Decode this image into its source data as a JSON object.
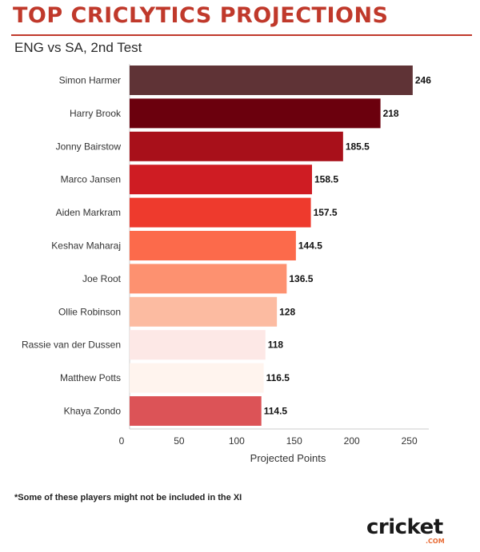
{
  "header": {
    "title": "TOP CRICLYTICS PROJECTIONS",
    "subtitle": "ENG vs SA, 2nd Test"
  },
  "footnote": "*Some of these players might not be included in the XI",
  "logo": {
    "text_main": "cricket",
    "text_sub": ".COM"
  },
  "colors": {
    "title": "#c0392b",
    "rule": "#c0392b",
    "axis": "#cccccc",
    "label": "#333333",
    "value": "#111111",
    "logo_dark": "#1a1a1a",
    "logo_accent": "#e86a33"
  },
  "chart_data": {
    "type": "bar",
    "orientation": "horizontal",
    "title": "",
    "xlabel": "Projected Points",
    "ylabel": "",
    "xlim": [
      0,
      260
    ],
    "xticks": [
      0,
      50,
      100,
      150,
      200,
      250
    ],
    "grid": false,
    "categories": [
      "Simon Harmer",
      "Harry Brook",
      "Jonny Bairstow",
      "Marco Jansen",
      "Aiden Markram",
      "Keshav Maharaj",
      "Joe Root",
      "Ollie Robinson",
      "Rassie van der Dussen",
      "Matthew Potts",
      "Khaya Zondo"
    ],
    "values": [
      246,
      218,
      185.5,
      158.5,
      157.5,
      144.5,
      136.5,
      128,
      118,
      116.5,
      114.5
    ],
    "value_labels": [
      "246",
      "218",
      "185.5",
      "158.5",
      "157.5",
      "144.5",
      "136.5",
      "128",
      "118",
      "116.5",
      "114.5"
    ],
    "colors": [
      "#5f3336",
      "#6b000d",
      "#a8101a",
      "#cf1c23",
      "#ee3a2d",
      "#fc6a4b",
      "#fd9170",
      "#fcbba1",
      "#fde8e6",
      "#fff4ee",
      "#dc5357"
    ]
  }
}
